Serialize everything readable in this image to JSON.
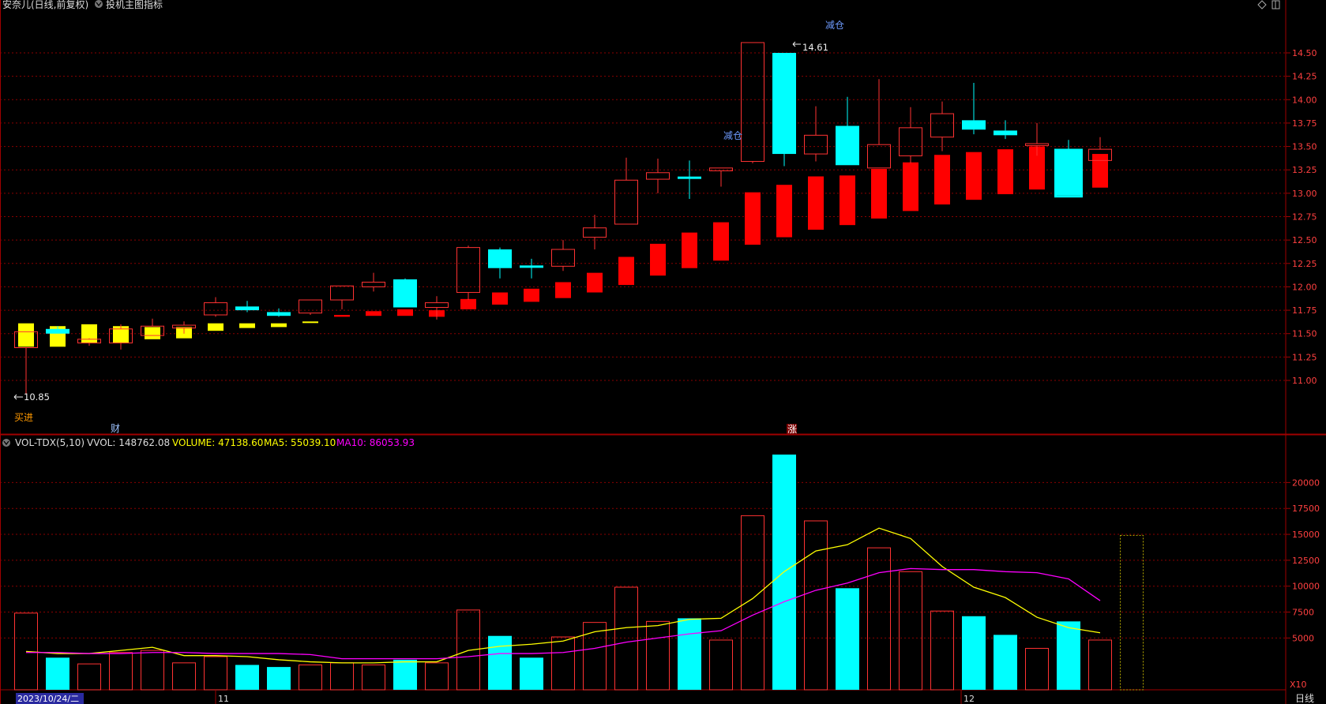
{
  "header": {
    "title": "安奈儿(日线,前复权)",
    "indicator_label": "投机主图指标",
    "icons": [
      "diamond-icon",
      "window-icon"
    ]
  },
  "price_axis": {
    "ticks": [
      "14.50",
      "14.25",
      "14.00",
      "13.75",
      "13.50",
      "13.25",
      "13.00",
      "12.75",
      "12.50",
      "12.25",
      "12.00",
      "11.75",
      "11.50",
      "11.25",
      "11.00"
    ],
    "min": 10.6,
    "max": 14.75
  },
  "markers": {
    "high_label": "14.61",
    "low_label": "10.85",
    "buy_label": "买进",
    "reduce_labels": [
      "减仓",
      "减仓"
    ],
    "cai_label": "财",
    "zhang_label": "涨"
  },
  "volume_panel": {
    "name": "VOL-TDX(5,10)",
    "vvol": "VVOL: 148762.08",
    "volume": "VOLUME: 47138.60",
    "ma5": "MA5: 55039.10",
    "ma10": "MA10: 86053.93",
    "ticks": [
      "20000",
      "17500",
      "15000",
      "12500",
      "10000",
      "7500",
      "5000"
    ],
    "multiplier": "X10",
    "max": 23000
  },
  "date_axis": {
    "first_date": "2023/10/24/二",
    "month_11": "11",
    "month_12": "12",
    "period": "日线"
  },
  "colors": {
    "up": "#ff3232",
    "down_cyan": "#00ffff",
    "yellow": "#ffff00",
    "magenta": "#ff00ff",
    "grid": "#8b0000",
    "axis": "#a00000"
  },
  "chart_data": {
    "type": "candlestick",
    "main_candles": [
      {
        "o": 11.35,
        "h": 11.52,
        "l": 10.85,
        "c": 11.52,
        "color": "up_hollow"
      },
      {
        "o": 11.55,
        "h": 11.58,
        "l": 11.5,
        "c": 11.5,
        "color": "cyan"
      },
      {
        "o": 11.4,
        "h": 11.45,
        "l": 11.37,
        "c": 11.44,
        "color": "up_hollow"
      },
      {
        "o": 11.4,
        "h": 11.6,
        "l": 11.33,
        "c": 11.55,
        "color": "up_hollow"
      },
      {
        "o": 11.48,
        "h": 11.66,
        "l": 11.48,
        "c": 11.58,
        "color": "up_hollow"
      },
      {
        "o": 11.56,
        "h": 11.63,
        "l": 11.5,
        "c": 11.59,
        "color": "up_hollow"
      },
      {
        "o": 11.7,
        "h": 11.89,
        "l": 11.68,
        "c": 11.83,
        "color": "up_hollow"
      },
      {
        "o": 11.79,
        "h": 11.85,
        "l": 11.73,
        "c": 11.75,
        "color": "cyan"
      },
      {
        "o": 11.73,
        "h": 11.77,
        "l": 11.68,
        "c": 11.69,
        "color": "cyan"
      },
      {
        "o": 11.72,
        "h": 11.86,
        "l": 11.7,
        "c": 11.86,
        "color": "up_hollow"
      },
      {
        "o": 11.86,
        "h": 12.01,
        "l": 11.76,
        "c": 12.01,
        "color": "up_hollow"
      },
      {
        "o": 12.0,
        "h": 12.15,
        "l": 11.95,
        "c": 12.05,
        "color": "up_hollow"
      },
      {
        "o": 12.08,
        "h": 12.09,
        "l": 11.78,
        "c": 11.78,
        "color": "cyan"
      },
      {
        "o": 11.78,
        "h": 11.9,
        "l": 11.65,
        "c": 11.83,
        "color": "up_hollow"
      },
      {
        "o": 11.94,
        "h": 12.44,
        "l": 11.86,
        "c": 12.42,
        "color": "up_hollow"
      },
      {
        "o": 12.4,
        "h": 12.42,
        "l": 12.09,
        "c": 12.2,
        "color": "cyan"
      },
      {
        "o": 12.22,
        "h": 12.3,
        "l": 12.09,
        "c": 12.22,
        "color": "cyan_cross"
      },
      {
        "o": 12.22,
        "h": 12.5,
        "l": 12.17,
        "c": 12.4,
        "color": "up_hollow"
      },
      {
        "o": 12.53,
        "h": 12.77,
        "l": 12.4,
        "c": 12.63,
        "color": "up_hollow"
      },
      {
        "o": 12.67,
        "h": 13.38,
        "l": 12.67,
        "c": 13.14,
        "color": "up_hollow"
      },
      {
        "o": 13.15,
        "h": 13.37,
        "l": 13.0,
        "c": 13.22,
        "color": "up_hollow"
      },
      {
        "o": 13.17,
        "h": 13.35,
        "l": 12.94,
        "c": 13.17,
        "color": "cyan_cross"
      },
      {
        "o": 13.24,
        "h": 13.27,
        "l": 13.07,
        "c": 13.27,
        "color": "up_hollow"
      },
      {
        "o": 13.34,
        "h": 14.61,
        "l": 13.32,
        "c": 14.61,
        "color": "up_hollow"
      },
      {
        "o": 14.5,
        "h": 14.5,
        "l": 13.29,
        "c": 13.42,
        "color": "cyan"
      },
      {
        "o": 13.42,
        "h": 13.93,
        "l": 13.34,
        "c": 13.62,
        "color": "up_hollow"
      },
      {
        "o": 13.72,
        "h": 14.03,
        "l": 13.3,
        "c": 13.3,
        "color": "cyan"
      },
      {
        "o": 13.27,
        "h": 14.22,
        "l": 13.27,
        "c": 13.52,
        "color": "up_hollow"
      },
      {
        "o": 13.4,
        "h": 13.92,
        "l": 13.32,
        "c": 13.7,
        "color": "up_hollow"
      },
      {
        "o": 13.6,
        "h": 13.98,
        "l": 13.45,
        "c": 13.85,
        "color": "up_hollow"
      },
      {
        "o": 13.78,
        "h": 14.18,
        "l": 13.63,
        "c": 13.68,
        "color": "cyan"
      },
      {
        "o": 13.67,
        "h": 13.78,
        "l": 13.58,
        "c": 13.62,
        "color": "cyan"
      },
      {
        "o": 13.51,
        "h": 13.75,
        "l": 13.4,
        "c": 13.53,
        "color": "up_hollow"
      },
      {
        "o": 13.45,
        "h": 13.57,
        "l": 12.98,
        "c": 12.98,
        "color": "cyan"
      },
      {
        "o": 13.35,
        "h": 13.6,
        "l": 13.35,
        "c": 13.47,
        "color": "up_hollow"
      }
    ],
    "trend_candles": [
      {
        "o": 11.36,
        "c": 11.61,
        "color": "yellow"
      },
      {
        "o": 11.36,
        "c": 11.58,
        "color": "yellow"
      },
      {
        "o": 11.4,
        "c": 11.6,
        "color": "yellow"
      },
      {
        "o": 11.4,
        "c": 11.58,
        "color": "yellow"
      },
      {
        "o": 11.44,
        "c": 11.57,
        "color": "yellow"
      },
      {
        "o": 11.45,
        "c": 11.57,
        "color": "yellow"
      },
      {
        "o": 11.53,
        "c": 11.61,
        "color": "yellow"
      },
      {
        "o": 11.56,
        "c": 11.61,
        "color": "yellow"
      },
      {
        "o": 11.57,
        "c": 11.61,
        "color": "yellow"
      },
      {
        "o": 11.62,
        "c": 11.63,
        "color": "yellow"
      },
      {
        "o": 11.68,
        "c": 11.7,
        "color": "red"
      },
      {
        "o": 11.69,
        "c": 11.74,
        "color": "red"
      },
      {
        "o": 11.69,
        "c": 11.76,
        "color": "red"
      },
      {
        "o": 11.68,
        "c": 11.75,
        "color": "red"
      },
      {
        "o": 11.76,
        "c": 11.87,
        "color": "red"
      },
      {
        "o": 11.81,
        "c": 11.94,
        "color": "red"
      },
      {
        "o": 11.84,
        "c": 11.98,
        "color": "red"
      },
      {
        "o": 11.88,
        "c": 12.05,
        "color": "red"
      },
      {
        "o": 11.94,
        "c": 12.15,
        "color": "red"
      },
      {
        "o": 12.02,
        "c": 12.32,
        "color": "red"
      },
      {
        "o": 12.12,
        "c": 12.46,
        "color": "red"
      },
      {
        "o": 12.2,
        "c": 12.58,
        "color": "red"
      },
      {
        "o": 12.28,
        "c": 12.69,
        "color": "red"
      },
      {
        "o": 12.45,
        "c": 13.01,
        "color": "red"
      },
      {
        "o": 12.53,
        "c": 13.09,
        "color": "red"
      },
      {
        "o": 12.61,
        "c": 13.18,
        "color": "red"
      },
      {
        "o": 12.66,
        "c": 13.19,
        "color": "red"
      },
      {
        "o": 12.73,
        "c": 13.26,
        "color": "red"
      },
      {
        "o": 12.81,
        "c": 13.33,
        "color": "red"
      },
      {
        "o": 12.88,
        "c": 13.41,
        "color": "red"
      },
      {
        "o": 12.93,
        "c": 13.44,
        "color": "red"
      },
      {
        "o": 12.99,
        "c": 13.47,
        "color": "red"
      },
      {
        "o": 13.04,
        "c": 13.5,
        "color": "red"
      },
      {
        "o": 13.02,
        "c": 13.41,
        "color": "red"
      },
      {
        "o": 13.06,
        "c": 13.42,
        "color": "red"
      }
    ],
    "volume_bars": [
      {
        "v": 7400,
        "color": "up_hollow"
      },
      {
        "v": 3100,
        "color": "cyan"
      },
      {
        "v": 2500,
        "color": "up_hollow"
      },
      {
        "v": 3600,
        "color": "up_hollow"
      },
      {
        "v": 3800,
        "color": "up_hollow"
      },
      {
        "v": 2600,
        "color": "up_hollow"
      },
      {
        "v": 3200,
        "color": "up_hollow"
      },
      {
        "v": 2400,
        "color": "cyan"
      },
      {
        "v": 2200,
        "color": "cyan"
      },
      {
        "v": 2400,
        "color": "up_hollow"
      },
      {
        "v": 2600,
        "color": "up_hollow"
      },
      {
        "v": 2400,
        "color": "up_hollow"
      },
      {
        "v": 2900,
        "color": "cyan"
      },
      {
        "v": 2600,
        "color": "up_hollow"
      },
      {
        "v": 7700,
        "color": "up_hollow"
      },
      {
        "v": 5200,
        "color": "cyan"
      },
      {
        "v": 3100,
        "color": "cyan"
      },
      {
        "v": 5100,
        "color": "up_hollow"
      },
      {
        "v": 6500,
        "color": "up_hollow"
      },
      {
        "v": 9900,
        "color": "up_hollow"
      },
      {
        "v": 6600,
        "color": "up_hollow"
      },
      {
        "v": 6900,
        "color": "cyan"
      },
      {
        "v": 4800,
        "color": "up_hollow"
      },
      {
        "v": 16800,
        "color": "up_hollow"
      },
      {
        "v": 22700,
        "color": "cyan"
      },
      {
        "v": 16300,
        "color": "up_hollow"
      },
      {
        "v": 9800,
        "color": "cyan"
      },
      {
        "v": 13700,
        "color": "up_hollow"
      },
      {
        "v": 11400,
        "color": "up_hollow"
      },
      {
        "v": 7600,
        "color": "up_hollow"
      },
      {
        "v": 7100,
        "color": "cyan"
      },
      {
        "v": 5300,
        "color": "cyan"
      },
      {
        "v": 4000,
        "color": "up_hollow"
      },
      {
        "v": 6600,
        "color": "cyan"
      },
      {
        "v": 4800,
        "color": "up_hollow"
      },
      {
        "v": 14900,
        "color": "yellow_dotted"
      }
    ],
    "ma5": [
      3700,
      3500,
      3500,
      3800,
      4100,
      3300,
      3300,
      3200,
      2900,
      2700,
      2600,
      2600,
      2700,
      2700,
      3800,
      4200,
      4400,
      4700,
      5600,
      6000,
      6200,
      6800,
      6900,
      8800,
      11400,
      13400,
      14000,
      15600,
      14600,
      11900,
      9900,
      8900,
      7000,
      6000,
      5500
    ],
    "ma10": [
      3600,
      3600,
      3500,
      3500,
      3600,
      3600,
      3500,
      3500,
      3500,
      3400,
      3000,
      3000,
      3000,
      3000,
      3200,
      3500,
      3500,
      3600,
      4000,
      4600,
      5000,
      5400,
      5700,
      7200,
      8500,
      9600,
      10300,
      11300,
      11700,
      11600,
      11600,
      11400,
      11300,
      10700,
      8600
    ]
  }
}
